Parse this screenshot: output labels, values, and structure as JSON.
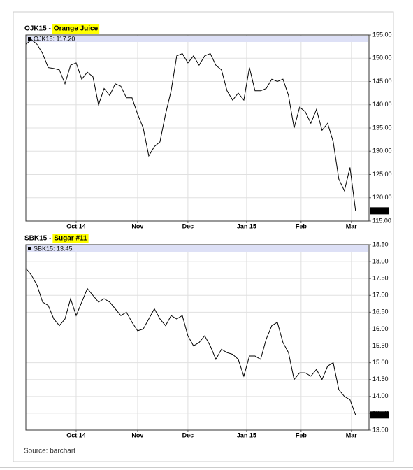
{
  "source": "Source: barchart",
  "chart_data": [
    {
      "type": "line",
      "title_prefix": "OJK15 -",
      "title": "Orange Juice",
      "series": [
        {
          "name": "OJK15: 117.20",
          "color": "#000000",
          "values": [
            153,
            154,
            153,
            151,
            148,
            147.8,
            147.5,
            144.5,
            148.5,
            149,
            145.5,
            147,
            146,
            140,
            143.5,
            142,
            144.5,
            144,
            141.5,
            141.5,
            138,
            135,
            129,
            131,
            132,
            138,
            143,
            150.5,
            151,
            149,
            150.5,
            148.5,
            150.5,
            151,
            148.5,
            147.5,
            143,
            141,
            142.5,
            141,
            148,
            143,
            143,
            143.5,
            145.5,
            145,
            145.5,
            142,
            135,
            139.5,
            138.5,
            136,
            139,
            134.5,
            136,
            132,
            124,
            121.5,
            126.5,
            117.2
          ]
        }
      ],
      "last_value_label": "117.20",
      "xlim": [
        0,
        61.4
      ],
      "xticks": [
        {
          "value": 9,
          "label": "Oct 14"
        },
        {
          "value": 20,
          "label": "Nov"
        },
        {
          "value": 29,
          "label": "Dec"
        },
        {
          "value": 39.5,
          "label": "Jan 15"
        },
        {
          "value": 49.25,
          "label": "Feb"
        },
        {
          "value": 58.25,
          "label": "Mar"
        }
      ],
      "ylim": [
        115,
        155
      ],
      "yticks": [
        {
          "value": 155,
          "label": "155.00"
        },
        {
          "value": 150,
          "label": "150.00"
        },
        {
          "value": 145,
          "label": "145.00"
        },
        {
          "value": 140,
          "label": "140.00"
        },
        {
          "value": 135,
          "label": "135.00"
        },
        {
          "value": 130,
          "label": "130.00"
        },
        {
          "value": 125,
          "label": "125.00"
        },
        {
          "value": 120,
          "label": "120.00"
        },
        {
          "value": 115,
          "label": "115.00"
        }
      ],
      "grid": true
    },
    {
      "type": "line",
      "title_prefix": "SBK15 -",
      "title": "Sugar #11",
      "series": [
        {
          "name": "SBK15: 13.45",
          "color": "#000000",
          "values": [
            17.8,
            17.6,
            17.3,
            16.8,
            16.7,
            16.3,
            16.1,
            16.3,
            16.9,
            16.4,
            16.8,
            17.2,
            17.0,
            16.8,
            16.9,
            16.8,
            16.6,
            16.4,
            16.5,
            16.2,
            15.95,
            16.0,
            16.3,
            16.6,
            16.3,
            16.1,
            16.4,
            16.3,
            16.4,
            15.8,
            15.5,
            15.6,
            15.8,
            15.5,
            15.1,
            15.4,
            15.3,
            15.25,
            15.1,
            14.6,
            15.2,
            15.2,
            15.1,
            15.7,
            16.1,
            16.2,
            15.6,
            15.3,
            14.5,
            14.7,
            14.7,
            14.6,
            14.8,
            14.5,
            14.9,
            15.0,
            14.2,
            14.0,
            13.9,
            13.45
          ]
        }
      ],
      "last_value_label": "13.45",
      "xlim": [
        0,
        61.4
      ],
      "xticks": [
        {
          "value": 9,
          "label": "Oct 14"
        },
        {
          "value": 20,
          "label": "Nov"
        },
        {
          "value": 29,
          "label": "Dec"
        },
        {
          "value": 39.5,
          "label": "Jan 15"
        },
        {
          "value": 49.25,
          "label": "Feb"
        },
        {
          "value": 58.25,
          "label": "Mar"
        }
      ],
      "ylim": [
        13,
        18.5
      ],
      "yticks": [
        {
          "value": 18.5,
          "label": "18.50"
        },
        {
          "value": 18,
          "label": "18.00"
        },
        {
          "value": 17.5,
          "label": "17.50"
        },
        {
          "value": 17,
          "label": "17.00"
        },
        {
          "value": 16.5,
          "label": "16.50"
        },
        {
          "value": 16,
          "label": "16.00"
        },
        {
          "value": 15.5,
          "label": "15.50"
        },
        {
          "value": 15,
          "label": "15.00"
        },
        {
          "value": 14.5,
          "label": "14.50"
        },
        {
          "value": 14,
          "label": "14.00"
        },
        {
          "value": 13.5,
          "label": "13.50"
        },
        {
          "value": 13,
          "label": "13.00"
        }
      ],
      "grid": true
    }
  ]
}
